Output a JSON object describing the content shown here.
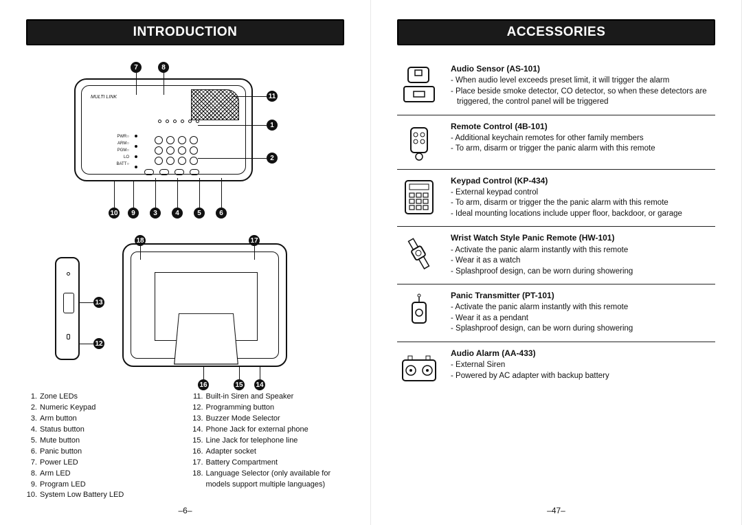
{
  "left": {
    "header": "INTRODUCTION",
    "page_number": "–6–",
    "callouts": [
      "1",
      "2",
      "3",
      "4",
      "5",
      "6",
      "7",
      "8",
      "9",
      "10",
      "11",
      "12",
      "13",
      "14",
      "15",
      "16",
      "17",
      "18"
    ],
    "parts_col1": [
      {
        "n": "1.",
        "t": "Zone LEDs"
      },
      {
        "n": "2.",
        "t": "Numeric Keypad"
      },
      {
        "n": "3.",
        "t": "Arm button"
      },
      {
        "n": "4.",
        "t": "Status button"
      },
      {
        "n": "5.",
        "t": "Mute button"
      },
      {
        "n": "6.",
        "t": "Panic button"
      },
      {
        "n": "7.",
        "t": "Power LED"
      },
      {
        "n": "8.",
        "t": "Arm LED"
      },
      {
        "n": "9.",
        "t": "Program LED"
      },
      {
        "n": "10.",
        "t": "System Low Battery LED"
      }
    ],
    "parts_col2": [
      {
        "n": "11.",
        "t": "Built-in Siren and Speaker"
      },
      {
        "n": "12.",
        "t": "Programming button"
      },
      {
        "n": "13.",
        "t": "Buzzer Mode Selector"
      },
      {
        "n": "14.",
        "t": "Phone Jack for external phone"
      },
      {
        "n": "15.",
        "t": "Line Jack for telephone line"
      },
      {
        "n": "16.",
        "t": "Adapter socket"
      },
      {
        "n": "17.",
        "t": "Battery Compartment"
      },
      {
        "n": "18.",
        "t": "Language Selector (only available for models support multiple languages)"
      }
    ]
  },
  "right": {
    "header": "ACCESSORIES",
    "page_number": "–47–",
    "items": [
      {
        "title": "Audio Sensor (AS-101)",
        "points": [
          "- When audio level exceeds preset limit, it will trigger the alarm",
          "- Place beside smoke detector, CO detector, so when these detectors are triggered, the control panel will be triggered"
        ]
      },
      {
        "title": "Remote Control (4B-101)",
        "points": [
          "- Additional keychain remotes for other family members",
          "- To arm, disarm or trigger the panic alarm with this remote"
        ]
      },
      {
        "title": "Keypad Control (KP-434)",
        "points": [
          "- External keypad control",
          "- To arm, disarm or trigger the the panic alarm with this remote",
          "- Ideal mounting locations include upper floor, backdoor, or garage"
        ]
      },
      {
        "title": "Wrist Watch Style Panic Remote (HW-101)",
        "points": [
          "- Activate the panic alarm instantly with this remote",
          "- Wear it as a watch",
          "- Splashproof design, can be worn during showering"
        ]
      },
      {
        "title": "Panic Transmitter (PT-101)",
        "points": [
          "- Activate the panic alarm instantly with this remote",
          "- Wear it as a pendant",
          "- Splashproof design, can be worn during showering"
        ]
      },
      {
        "title": "Audio Alarm (AA-433)",
        "points": [
          "- External Siren",
          "- Powered by AC adapter with backup battery"
        ]
      }
    ]
  }
}
